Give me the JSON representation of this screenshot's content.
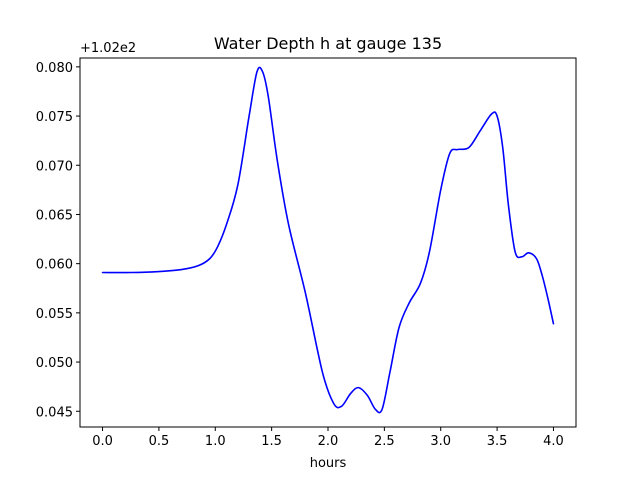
{
  "chart_data": {
    "type": "line",
    "title": "Water Depth h at gauge 135",
    "xlabel": "hours",
    "ylabel": "",
    "offset_label": "+1.02e2",
    "xlim": [
      -0.2,
      4.2
    ],
    "ylim": [
      0.0434,
      0.0809
    ],
    "xticks": [
      0.0,
      0.5,
      1.0,
      1.5,
      2.0,
      2.5,
      3.0,
      3.5,
      4.0
    ],
    "xtick_labels": [
      "0.0",
      "0.5",
      "1.0",
      "1.5",
      "2.0",
      "2.5",
      "3.0",
      "3.5",
      "4.0"
    ],
    "yticks": [
      0.045,
      0.05,
      0.055,
      0.06,
      0.065,
      0.07,
      0.075,
      0.08
    ],
    "ytick_labels": [
      "0.045",
      "0.050",
      "0.055",
      "0.060",
      "0.065",
      "0.070",
      "0.075",
      "0.080"
    ],
    "grid": false,
    "series": [
      {
        "color": "#0000ff",
        "x": [
          0.0,
          0.25,
          0.5,
          0.7,
          0.85,
          0.95,
          1.02,
          1.1,
          1.2,
          1.3,
          1.37,
          1.42,
          1.47,
          1.55,
          1.65,
          1.8,
          1.95,
          2.05,
          2.12,
          2.2,
          2.27,
          2.35,
          2.42,
          2.48,
          2.55,
          2.63,
          2.72,
          2.82,
          2.9,
          3.0,
          3.08,
          3.15,
          3.25,
          3.35,
          3.45,
          3.5,
          3.55,
          3.6,
          3.66,
          3.72,
          3.78,
          3.85,
          3.9,
          3.95,
          4.0
        ],
        "y": [
          0.0591,
          0.0591,
          0.0592,
          0.0594,
          0.0598,
          0.0605,
          0.0617,
          0.064,
          0.068,
          0.075,
          0.0795,
          0.0795,
          0.077,
          0.0705,
          0.064,
          0.057,
          0.049,
          0.0458,
          0.0455,
          0.0468,
          0.0474,
          0.0466,
          0.0452,
          0.0452,
          0.049,
          0.0535,
          0.056,
          0.058,
          0.0612,
          0.0675,
          0.0712,
          0.0716,
          0.0718,
          0.0735,
          0.0752,
          0.075,
          0.0718,
          0.066,
          0.0612,
          0.0607,
          0.0611,
          0.0605,
          0.0588,
          0.0565,
          0.0539
        ]
      }
    ]
  }
}
